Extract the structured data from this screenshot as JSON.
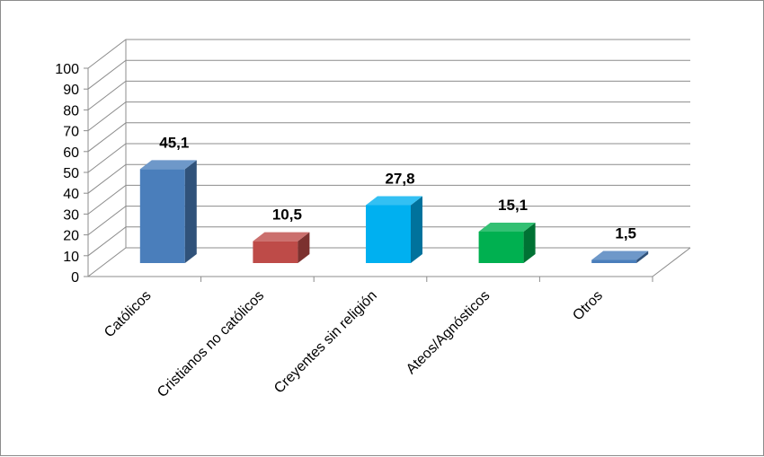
{
  "chart_data": {
    "type": "bar",
    "style": "3d-column",
    "categories": [
      "Católicos",
      "Cristianos no católicos",
      "Creyentes sin religión",
      "Ateos/Agnósticos",
      "Otros"
    ],
    "values": [
      45.1,
      10.5,
      27.8,
      15.1,
      1.5
    ],
    "data_labels": [
      "45,1",
      "10,5",
      "27,8",
      "15,1",
      "1,5"
    ],
    "y_ticks": [
      "0",
      "10",
      "20",
      "30",
      "40",
      "50",
      "60",
      "70",
      "80",
      "90",
      "100"
    ],
    "ylim": [
      0,
      100
    ],
    "grid": true,
    "legend": "none",
    "colors": [
      "#4a7ebb",
      "#be4b48",
      "#00b0f0",
      "#00b050",
      "#4a7ebb"
    ]
  }
}
